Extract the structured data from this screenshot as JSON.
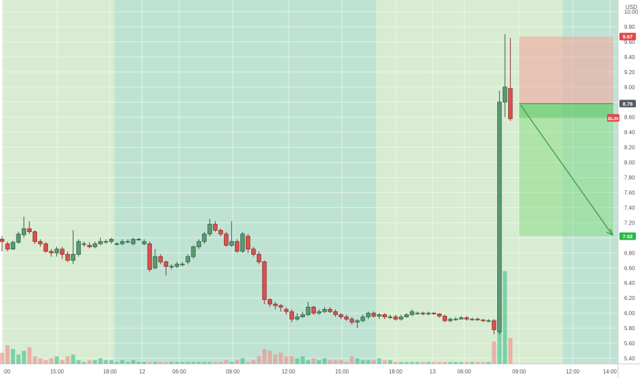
{
  "chart_data": {
    "type": "candlestick",
    "currency_label": "USD",
    "ylim": [
      5.3,
      10.1
    ],
    "y_ticks": [
      "5.40",
      "5.60",
      "5.80",
      "6.00",
      "6.20",
      "6.40",
      "6.60",
      "6.80",
      "7.00",
      "7.20",
      "7.40",
      "7.60",
      "7.80",
      "8.00",
      "8.20",
      "8.40",
      "8.60",
      "8.80",
      "9.00",
      "9.20",
      "9.40",
      "9.60",
      "9.80",
      "10.00"
    ],
    "x_ticks": [
      ":00",
      "15:00",
      "18:00",
      "12",
      "06:00",
      "09:00",
      "12:00",
      "15:00",
      "18:00",
      "13",
      "06:00",
      "09:00",
      "12:00",
      "14:00"
    ],
    "price_badges": [
      {
        "label": "9.67",
        "value": 9.67,
        "color": "#e04a4a"
      },
      {
        "label": "8.78",
        "value": 8.78,
        "color": "#555a66"
      },
      {
        "label": "BLIN",
        "value": 8.59,
        "color": "#e04a4a"
      },
      {
        "label": "7.02",
        "value": 7.02,
        "color": "#2db84a"
      }
    ],
    "short_position": {
      "entry": 8.78,
      "stop": 9.67,
      "target": 7.02
    },
    "candles": [
      [
        6.98,
        6.95,
        7.02,
        6.82
      ],
      [
        6.92,
        6.85,
        6.95,
        6.82
      ],
      [
        6.85,
        6.94,
        6.96,
        6.84
      ],
      [
        6.94,
        7.05,
        7.08,
        6.92
      ],
      [
        7.04,
        7.12,
        7.28,
        7.0
      ],
      [
        7.12,
        7.08,
        7.22,
        7.05
      ],
      [
        7.08,
        6.95,
        7.1,
        6.92
      ],
      [
        6.95,
        6.92,
        6.98,
        6.88
      ],
      [
        6.92,
        6.82,
        6.94,
        6.8
      ],
      [
        6.82,
        6.8,
        6.85,
        6.75
      ],
      [
        6.8,
        6.85,
        6.88,
        6.75
      ],
      [
        6.85,
        6.78,
        6.88,
        6.72
      ],
      [
        6.78,
        6.7,
        6.82,
        6.68
      ],
      [
        6.7,
        6.78,
        7.1,
        6.65
      ],
      [
        6.78,
        6.95,
        6.98,
        6.75
      ],
      [
        6.92,
        6.92,
        6.95,
        6.88
      ],
      [
        6.9,
        6.88,
        6.94,
        6.86
      ],
      [
        6.88,
        6.92,
        6.95,
        6.86
      ],
      [
        6.92,
        6.95,
        7.0,
        6.9
      ],
      [
        6.95,
        6.95,
        6.98,
        6.92
      ],
      [
        6.95,
        6.98,
        7.0,
        6.92
      ],
      [
        6.92,
        6.92,
        6.94,
        6.9
      ],
      [
        6.92,
        6.95,
        6.98,
        6.9
      ],
      [
        6.95,
        6.95,
        6.98,
        6.93
      ],
      [
        6.92,
        6.98,
        7.0,
        6.9
      ],
      [
        6.98,
        6.98,
        7.0,
        6.96
      ],
      [
        6.92,
        6.95,
        6.98,
        6.9
      ],
      [
        6.92,
        6.58,
        6.95,
        6.55
      ],
      [
        6.6,
        6.75,
        6.85,
        6.58
      ],
      [
        6.75,
        6.68,
        6.78,
        6.65
      ],
      [
        6.68,
        6.62,
        6.7,
        6.5
      ],
      [
        6.62,
        6.62,
        6.65,
        6.58
      ],
      [
        6.62,
        6.65,
        6.68,
        6.6
      ],
      [
        6.65,
        6.65,
        6.68,
        6.62
      ],
      [
        6.68,
        6.75,
        6.78,
        6.65
      ],
      [
        6.75,
        6.88,
        6.9,
        6.72
      ],
      [
        6.88,
        6.95,
        6.98,
        6.85
      ],
      [
        6.95,
        7.05,
        7.08,
        6.92
      ],
      [
        7.05,
        7.18,
        7.25,
        7.02
      ],
      [
        7.18,
        7.1,
        7.22,
        7.08
      ],
      [
        7.1,
        7.05,
        7.12,
        7.02
      ],
      [
        7.05,
        6.9,
        7.08,
        6.88
      ],
      [
        6.9,
        6.95,
        7.22,
        6.88
      ],
      [
        6.95,
        6.82,
        6.98,
        6.8
      ],
      [
        6.82,
        7.05,
        7.08,
        6.8
      ],
      [
        7.02,
        6.85,
        7.05,
        6.8
      ],
      [
        6.85,
        6.78,
        6.88,
        6.75
      ],
      [
        6.78,
        6.68,
        6.82,
        6.65
      ],
      [
        6.68,
        6.18,
        6.7,
        6.12
      ],
      [
        6.18,
        6.12,
        6.2,
        6.08
      ],
      [
        6.12,
        6.1,
        6.15,
        6.05
      ],
      [
        6.1,
        6.08,
        6.12,
        6.02
      ],
      [
        6.05,
        6.02,
        6.08,
        5.98
      ],
      [
        6.02,
        5.92,
        6.05,
        5.88
      ],
      [
        5.92,
        5.95,
        6.0,
        5.9
      ],
      [
        5.95,
        5.98,
        6.02,
        5.94
      ],
      [
        5.98,
        6.08,
        6.15,
        5.96
      ],
      [
        6.08,
        6.0,
        6.1,
        5.98
      ],
      [
        6.0,
        6.02,
        6.05,
        5.98
      ],
      [
        6.02,
        6.05,
        6.08,
        6.0
      ],
      [
        6.05,
        6.02,
        6.08,
        6.0
      ],
      [
        6.02,
        5.98,
        6.05,
        5.95
      ],
      [
        5.98,
        5.95,
        6.0,
        5.92
      ],
      [
        5.95,
        5.92,
        5.98,
        5.9
      ],
      [
        5.92,
        5.88,
        5.95,
        5.85
      ],
      [
        5.88,
        5.9,
        5.92,
        5.8
      ],
      [
        5.9,
        5.95,
        5.98,
        5.88
      ],
      [
        5.95,
        6.0,
        6.02,
        5.92
      ],
      [
        6.0,
        5.96,
        6.02,
        5.94
      ],
      [
        5.96,
        5.98,
        6.0,
        5.92
      ],
      [
        5.98,
        5.95,
        6.0,
        5.92
      ],
      [
        5.95,
        5.95,
        5.98,
        5.92
      ],
      [
        5.95,
        5.92,
        5.98,
        5.9
      ],
      [
        5.92,
        5.95,
        5.98,
        5.9
      ],
      [
        5.95,
        5.98,
        6.0,
        5.94
      ],
      [
        5.98,
        6.02,
        6.05,
        5.96
      ],
      [
        6.0,
        6.0,
        6.02,
        5.98
      ],
      [
        6.0,
        5.99,
        6.02,
        5.97
      ],
      [
        5.99,
        6.0,
        6.02,
        5.97
      ],
      [
        6.0,
        5.99,
        6.01,
        5.98
      ],
      [
        5.99,
        5.96,
        6.0,
        5.94
      ],
      [
        5.96,
        5.9,
        5.98,
        5.88
      ],
      [
        5.9,
        5.92,
        5.94,
        5.88
      ],
      [
        5.92,
        5.92,
        5.95,
        5.9
      ],
      [
        5.92,
        5.94,
        5.96,
        5.92
      ],
      [
        5.94,
        5.92,
        5.96,
        5.9
      ],
      [
        5.92,
        5.92,
        5.94,
        5.9
      ],
      [
        5.92,
        5.91,
        5.94,
        5.9
      ],
      [
        5.91,
        5.9,
        5.92,
        5.88
      ],
      [
        5.9,
        5.9,
        5.92,
        5.88
      ],
      [
        5.9,
        5.78,
        5.92,
        5.72
      ],
      [
        5.75,
        8.8,
        8.95,
        5.72
      ],
      [
        8.8,
        9.0,
        9.7,
        8.6
      ],
      [
        8.98,
        8.58,
        9.65,
        8.55
      ]
    ],
    "volume": [
      6,
      10,
      8,
      5,
      7,
      9,
      4,
      3,
      2,
      3,
      4,
      2,
      4,
      5,
      2,
      1,
      2,
      2,
      3,
      2,
      2,
      1,
      2,
      1,
      2,
      1,
      1,
      1,
      1,
      1,
      1,
      1,
      1,
      1,
      1,
      1,
      1,
      1,
      1,
      1,
      1,
      2,
      1,
      2,
      3,
      1,
      2,
      4,
      8,
      7,
      5,
      6,
      4,
      4,
      3,
      4,
      2,
      3,
      2,
      3,
      2,
      2,
      2,
      1,
      4,
      3,
      2,
      2,
      2,
      3,
      2,
      2,
      1,
      1,
      1,
      1,
      1,
      1,
      1,
      1,
      1,
      1,
      1,
      1,
      1,
      1,
      1,
      1,
      1,
      1,
      12,
      30,
      50,
      14
    ],
    "sessions": [
      {
        "from": 0,
        "to": 20.5,
        "shade": "extended"
      },
      {
        "from": 20.5,
        "to": 68.5,
        "shade": "regular"
      },
      {
        "from": 68.5,
        "to": 102.5,
        "shade": "extended"
      },
      {
        "from": 102.5,
        "to": 149.5,
        "shade": "regular"
      },
      {
        "from": 149.5,
        "to": 178,
        "shade": "extended"
      }
    ],
    "grid": true
  }
}
